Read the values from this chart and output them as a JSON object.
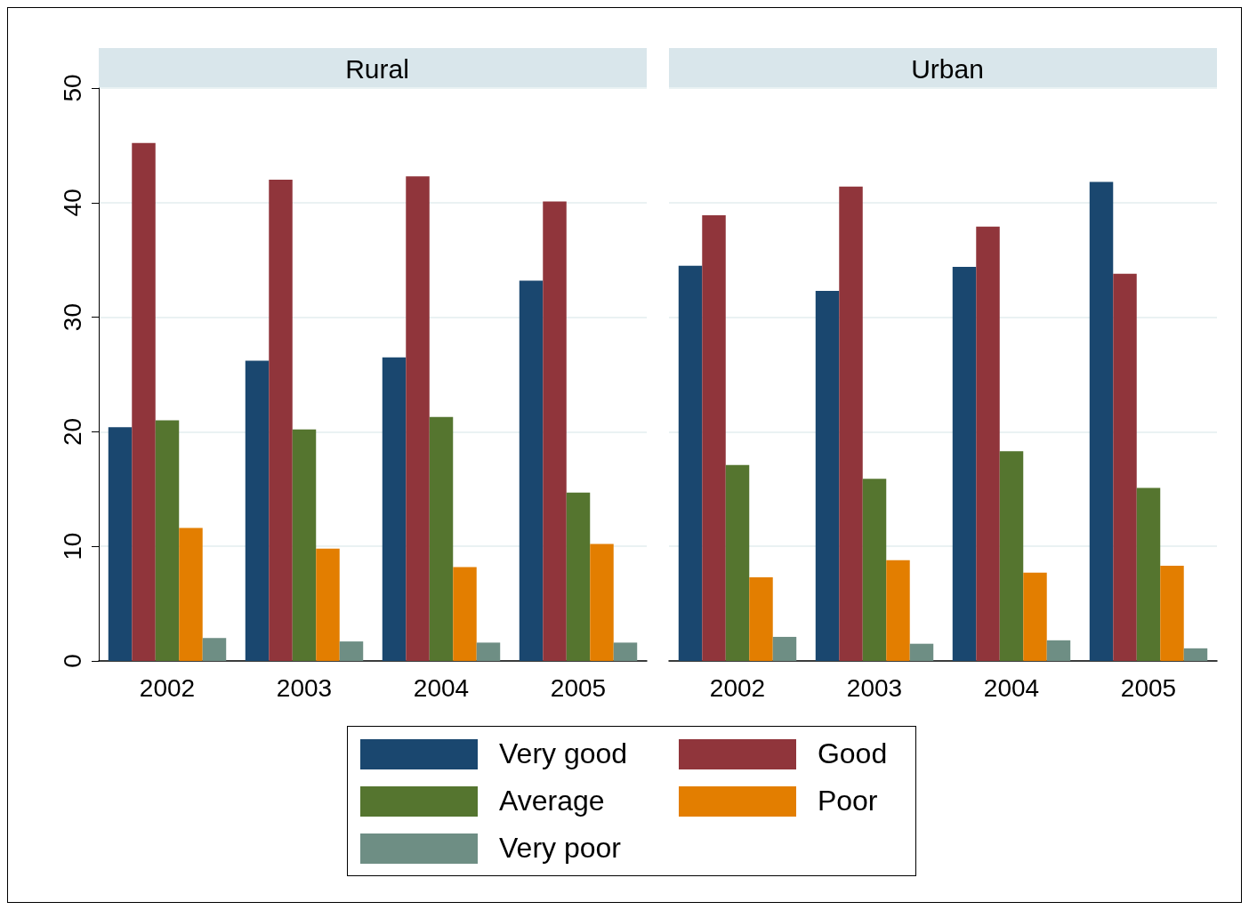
{
  "chart_data": [
    {
      "type": "bar",
      "title": "Rural",
      "categories": [
        "2002",
        "2003",
        "2004",
        "2005"
      ],
      "ylim": [
        0,
        50
      ],
      "yticks": [
        0,
        10,
        20,
        30,
        40,
        50
      ],
      "grid": "y",
      "legend": "bottom",
      "series": [
        {
          "name": "Very good",
          "color": "#1a476f",
          "values": [
            20.4,
            26.2,
            26.5,
            33.2
          ]
        },
        {
          "name": "Good",
          "color": "#90353b",
          "values": [
            45.2,
            42.0,
            42.3,
            40.1
          ]
        },
        {
          "name": "Average",
          "color": "#55752f",
          "values": [
            21.0,
            20.2,
            21.3,
            14.7
          ]
        },
        {
          "name": "Poor",
          "color": "#e37e00",
          "values": [
            11.6,
            9.8,
            8.2,
            10.2
          ]
        },
        {
          "name": "Very poor",
          "color": "#6e8e84",
          "values": [
            2.0,
            1.7,
            1.6,
            1.6
          ]
        }
      ]
    },
    {
      "type": "bar",
      "title": "Urban",
      "categories": [
        "2002",
        "2003",
        "2004",
        "2005"
      ],
      "ylim": [
        0,
        50
      ],
      "yticks": [
        0,
        10,
        20,
        30,
        40,
        50
      ],
      "grid": "y",
      "tick_labels": "x",
      "series": [
        {
          "name": "Very good",
          "color": "#1a476f",
          "values": [
            34.5,
            32.3,
            34.4,
            41.8
          ]
        },
        {
          "name": "Good",
          "color": "#90353b",
          "values": [
            38.9,
            41.4,
            37.9,
            33.8
          ]
        },
        {
          "name": "Average",
          "color": "#55752f",
          "values": [
            17.1,
            15.9,
            18.3,
            15.1
          ]
        },
        {
          "name": "Poor",
          "color": "#e37e00",
          "values": [
            7.3,
            8.8,
            7.7,
            8.3
          ]
        },
        {
          "name": "Very poor",
          "color": "#6e8e84",
          "values": [
            2.1,
            1.5,
            1.8,
            1.1
          ]
        }
      ]
    }
  ]
}
